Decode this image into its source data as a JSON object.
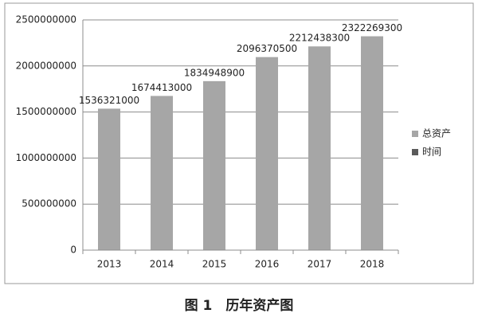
{
  "chart_data": {
    "type": "bar",
    "caption": "图 1　历年资产图",
    "categories": [
      "2013",
      "2014",
      "2015",
      "2016",
      "2017",
      "2018"
    ],
    "series": [
      {
        "name": "总资产",
        "color": "#a6a6a6",
        "values": [
          1536321000,
          1674413000,
          1834948900,
          2096370500,
          2212438300,
          2322269300
        ]
      },
      {
        "name": "时间",
        "color": "#5a5a5a",
        "values": [
          null,
          null,
          null,
          null,
          null,
          null
        ]
      }
    ],
    "ylim": [
      0,
      2500000000
    ],
    "yticks": [
      0,
      500000000,
      1000000000,
      1500000000,
      2000000000,
      2500000000
    ],
    "grid": true,
    "legend": "right"
  }
}
